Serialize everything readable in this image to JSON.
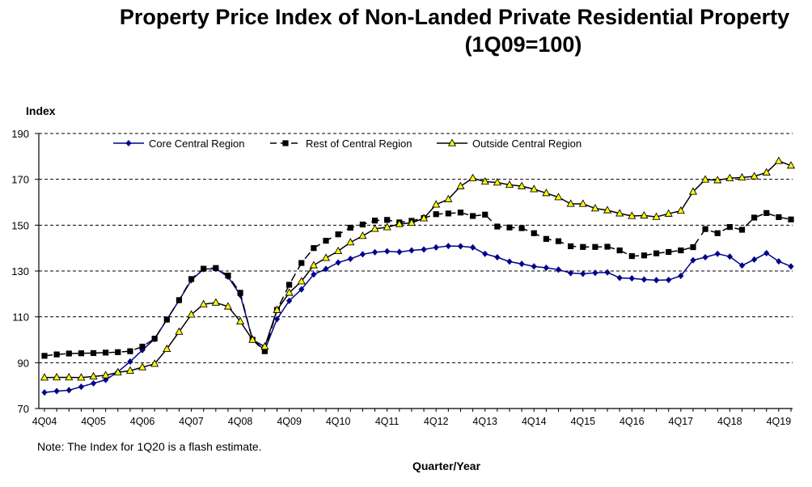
{
  "title_line1": "Property Price Index of Non-Landed Private Residential Property",
  "title_line2": "(1Q09=100)",
  "note": "Note: The Index for 1Q20 is a flash estimate.",
  "chart_data": {
    "type": "line",
    "title": "Property Price Index of Non-Landed Private Residential Property (1Q09=100)",
    "xlabel": "Quarter/Year",
    "ylabel": "Index",
    "ylim": [
      70,
      190
    ],
    "yticks": [
      70,
      90,
      110,
      130,
      150,
      170,
      190
    ],
    "grid": true,
    "legend_position": "top",
    "x_tick_labels": [
      "4Q04",
      "4Q05",
      "4Q06",
      "4Q07",
      "4Q08",
      "4Q09",
      "4Q10",
      "4Q11",
      "4Q12",
      "4Q13",
      "4Q14",
      "4Q15",
      "4Q16",
      "4Q17",
      "4Q18",
      "4Q19"
    ],
    "x": [
      "4Q04",
      "1Q05",
      "2Q05",
      "3Q05",
      "4Q05",
      "1Q06",
      "2Q06",
      "3Q06",
      "4Q06",
      "1Q07",
      "2Q07",
      "3Q07",
      "4Q07",
      "1Q08",
      "2Q08",
      "3Q08",
      "4Q08",
      "1Q09",
      "2Q09",
      "3Q09",
      "4Q09",
      "1Q10",
      "2Q10",
      "3Q10",
      "4Q10",
      "1Q11",
      "2Q11",
      "3Q11",
      "4Q11",
      "1Q12",
      "2Q12",
      "3Q12",
      "4Q12",
      "1Q13",
      "2Q13",
      "3Q13",
      "4Q13",
      "1Q14",
      "2Q14",
      "3Q14",
      "4Q14",
      "1Q15",
      "2Q15",
      "3Q15",
      "4Q15",
      "1Q16",
      "2Q16",
      "3Q16",
      "4Q16",
      "1Q17",
      "2Q17",
      "3Q17",
      "4Q17",
      "1Q18",
      "2Q18",
      "3Q18",
      "4Q18",
      "1Q19",
      "2Q19",
      "3Q19",
      "4Q19",
      "1Q20"
    ],
    "series": [
      {
        "name": "Core Central Region",
        "color": "#00008B",
        "marker": "diamond",
        "line": "solid",
        "values": [
          77.0,
          77.6,
          78.0,
          79.5,
          81.0,
          82.5,
          86.0,
          90.5,
          95.5,
          100.3,
          108.8,
          117.2,
          126.0,
          130.8,
          131.0,
          127.5,
          119.5,
          100.0,
          95.5,
          109.0,
          117.0,
          122.0,
          128.5,
          130.9,
          133.7,
          135.3,
          137.3,
          138.2,
          138.6,
          138.3,
          139.0,
          139.4,
          140.3,
          140.9,
          140.8,
          140.3,
          137.5,
          136.0,
          134.1,
          133.1,
          132.0,
          131.4,
          130.6,
          129.1,
          128.8,
          129.2,
          129.4,
          127.0,
          126.8,
          126.3,
          126.0,
          126.1,
          127.9,
          134.7,
          136.0,
          137.5,
          136.3,
          132.4,
          135.0,
          137.8,
          134.2,
          132.0
        ]
      },
      {
        "name": "Rest of Central Region",
        "color": "#000000",
        "marker": "square",
        "line": "dashed",
        "values": [
          93.0,
          93.6,
          94.0,
          94.1,
          94.2,
          94.4,
          94.6,
          95.0,
          97.0,
          100.5,
          108.8,
          117.3,
          126.5,
          131.0,
          131.3,
          128.0,
          120.5,
          100.0,
          95.0,
          113.0,
          124.0,
          133.5,
          140.0,
          143.2,
          146.0,
          148.9,
          150.3,
          152.0,
          152.3,
          151.2,
          151.9,
          153.1,
          154.8,
          155.1,
          155.5,
          154.0,
          154.6,
          149.4,
          149.0,
          148.7,
          146.5,
          144.0,
          143.0,
          140.8,
          140.5,
          140.5,
          140.6,
          139.0,
          136.5,
          136.8,
          137.7,
          138.3,
          139.0,
          140.4,
          148.3,
          146.5,
          149.2,
          148.0,
          153.3,
          155.3,
          153.5,
          152.5
        ]
      },
      {
        "name": "Outside Central Region",
        "color": "#000000",
        "fill": "#FFFF00",
        "marker": "triangle",
        "line": "solid",
        "values": [
          83.5,
          83.6,
          83.6,
          83.5,
          84.0,
          84.5,
          85.8,
          86.5,
          88.0,
          89.5,
          96.0,
          103.5,
          111.0,
          115.5,
          116.2,
          114.5,
          108.0,
          100.0,
          97.0,
          113.0,
          120.5,
          125.5,
          132.5,
          135.7,
          138.7,
          142.5,
          145.3,
          148.4,
          149.1,
          150.5,
          151.0,
          153.0,
          159.0,
          161.3,
          167.0,
          170.5,
          169.0,
          168.6,
          167.6,
          167.0,
          165.7,
          164.0,
          162.2,
          159.3,
          159.3,
          157.3,
          156.5,
          155.1,
          154.0,
          154.2,
          153.6,
          155.0,
          156.3,
          164.6,
          169.9,
          169.6,
          170.5,
          170.8,
          171.3,
          173.0,
          178.0,
          176.0
        ]
      }
    ]
  }
}
